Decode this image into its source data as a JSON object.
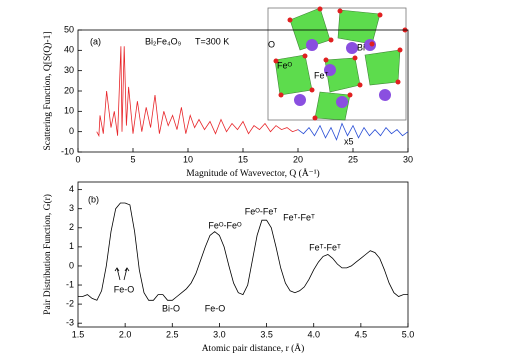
{
  "chart_data": [
    {
      "type": "line",
      "x_label": "Magnitude of Wavevector, Q (Å⁻¹)",
      "y_label": "Scattering Function, Q[S(Q)-1]",
      "annotations": [
        "(a)",
        "Bi₂Fe₄O₉",
        "T=300 K",
        "x5",
        "O",
        "Bi",
        "Feᴼ",
        "Feᵀ"
      ],
      "xlim": [
        0,
        30
      ],
      "xticks": [
        0,
        5,
        10,
        15,
        20,
        25,
        30
      ],
      "ylim": [
        -10,
        50
      ],
      "yticks": [
        -10,
        0,
        10,
        20,
        30,
        40,
        50
      ],
      "series": [
        {
          "color": "#e8262a",
          "x": [
            1.7,
            1.8,
            1.9,
            2.0,
            2.3,
            2.6,
            3,
            3.3,
            3.6,
            3.9,
            4.0,
            4.2,
            4.4,
            4.6,
            5,
            5.4,
            5.8,
            6.2,
            6.6,
            7,
            7.4,
            7.8,
            8.2,
            8.6,
            9,
            9.4,
            9.8,
            10.2,
            10.6,
            11,
            11.5,
            12,
            12.5,
            13,
            13.5,
            14,
            14.5,
            15,
            15.5,
            16,
            16.5,
            17,
            17.5,
            18,
            18.5,
            19,
            19.5,
            20
          ],
          "values": [
            0,
            -1,
            -2,
            8,
            -1,
            20,
            2,
            10,
            -2,
            42,
            0,
            42,
            3,
            22,
            -1,
            15,
            0,
            12,
            2,
            18,
            -1,
            10,
            3,
            8,
            1,
            12,
            -1,
            8,
            2,
            6,
            1,
            5,
            -1,
            6,
            0,
            4,
            1,
            5,
            -1,
            3,
            1,
            4,
            0,
            3,
            1,
            2,
            0,
            1
          ]
        },
        {
          "color": "#2a4fd6",
          "x": [
            20,
            20.5,
            21,
            21.5,
            22,
            22.5,
            23,
            23.5,
            24,
            24.5,
            25,
            25.5,
            26,
            26.5,
            27,
            27.5,
            28,
            28.5,
            29,
            29.5,
            30
          ],
          "values": [
            1,
            -1,
            2,
            -2,
            3,
            -3,
            2,
            -4,
            4,
            -2,
            3,
            -3,
            2,
            -2,
            1,
            -2,
            2,
            -1,
            1,
            -2,
            0
          ]
        }
      ]
    },
    {
      "type": "line",
      "x_label": "Atomic pair distance, r (Å)",
      "y_label": "Pair Distribution Function, G(r)",
      "annotations": [
        "(b)",
        "Fe-O",
        "Bi-O",
        "Fe-O",
        "Feᴼ-Feᴼ",
        "Feᴼ-Feᵀ",
        "Feᵀ-Feᵀ",
        "Feᵀ-Feᵀ"
      ],
      "xlim": [
        1.5,
        5.0
      ],
      "xticks": [
        1.5,
        {
          "value": 2,
          "label": "2.0"
        },
        2.5,
        {
          "value": 3,
          "label": "3.0"
        },
        3.5,
        {
          "value": 4,
          "label": "4.0"
        },
        4.5,
        {
          "value": 5,
          "label": "5.0"
        }
      ],
      "ylim": [
        -3.2,
        4.4
      ],
      "yticks": [
        -3,
        -2,
        -1,
        0,
        1,
        2,
        3,
        4
      ],
      "series": [
        {
          "color": "#000000",
          "x": [
            1.5,
            1.55,
            1.6,
            1.65,
            1.7,
            1.75,
            1.8,
            1.85,
            1.9,
            1.95,
            2.0,
            2.05,
            2.1,
            2.15,
            2.2,
            2.25,
            2.3,
            2.35,
            2.4,
            2.45,
            2.5,
            2.55,
            2.6,
            2.65,
            2.7,
            2.75,
            2.8,
            2.85,
            2.9,
            2.95,
            3.0,
            3.05,
            3.1,
            3.15,
            3.2,
            3.25,
            3.3,
            3.35,
            3.4,
            3.45,
            3.5,
            3.55,
            3.6,
            3.65,
            3.7,
            3.75,
            3.8,
            3.85,
            3.9,
            3.95,
            4.0,
            4.05,
            4.1,
            4.15,
            4.2,
            4.25,
            4.3,
            4.35,
            4.4,
            4.45,
            4.5,
            4.55,
            4.6,
            4.65,
            4.7,
            4.75,
            4.8,
            4.85,
            4.9,
            4.95,
            5.0
          ],
          "values": [
            -1.6,
            -1.6,
            -1.5,
            -1.7,
            -1.8,
            -1.3,
            0.0,
            1.8,
            3.0,
            3.3,
            3.3,
            3.2,
            1.8,
            -0.2,
            -1.4,
            -1.8,
            -1.8,
            -1.5,
            -1.5,
            -1.8,
            -1.8,
            -1.6,
            -1.4,
            -1.2,
            -0.9,
            -0.4,
            0.3,
            1.0,
            1.6,
            1.8,
            1.6,
            1.0,
            0.0,
            -0.9,
            -1.4,
            -1.5,
            -1.0,
            0.3,
            1.6,
            2.4,
            2.4,
            2.0,
            1.0,
            -0.1,
            -0.9,
            -1.3,
            -1.4,
            -1.3,
            -1.1,
            -0.7,
            -0.2,
            0.2,
            0.5,
            0.6,
            0.4,
            0.1,
            -0.1,
            -0.1,
            0.0,
            0.2,
            0.4,
            0.6,
            0.8,
            0.7,
            0.4,
            -0.2,
            -0.9,
            -1.4,
            -1.6,
            -1.5,
            -1.5
          ]
        }
      ]
    }
  ]
}
